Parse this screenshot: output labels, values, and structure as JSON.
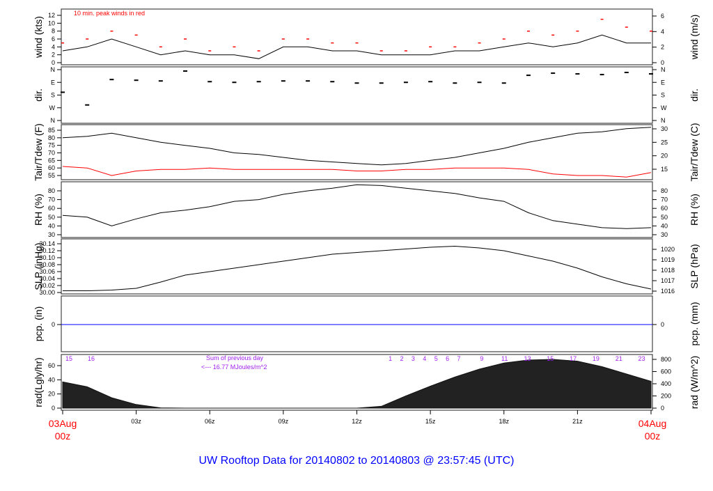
{
  "title": "UW Rooftop Data for 20140802  to  20140803 @ 23:57:45  (UTC)",
  "colors": {
    "line": "#000000",
    "peak": "#ff0000",
    "dewpoint": "#ff0000",
    "precip": "#0000ff",
    "annotation": "#a020f0",
    "date": "#ff0000",
    "title": "#0000ff"
  },
  "x_axis": {
    "start_label": [
      "03Aug",
      "00z"
    ],
    "end_label": [
      "04Aug",
      "00z"
    ],
    "ticks": [
      "03z",
      "06z",
      "09z",
      "12z",
      "15z",
      "18z",
      "21z"
    ]
  },
  "annotations": {
    "wind_note": "10 min. peak winds in red",
    "rad_sum_1": "Sum of previous day",
    "rad_sum_2": "<--- 16.77 MJoules/m^2",
    "rad_hour_labels_left": [
      "15",
      "16"
    ],
    "rad_hour_labels_right": [
      "1",
      "2",
      "3",
      "4",
      "5",
      "6",
      "7",
      "9",
      "11",
      "13",
      "15",
      "17",
      "19",
      "21",
      "23"
    ]
  },
  "chart_data": [
    {
      "type": "line",
      "ylabel": "wind (kts)",
      "ylabel_right": "wind (m/s)",
      "ylim": [
        0,
        13
      ],
      "yticks": [
        "0",
        "2",
        "4",
        "6",
        "8",
        "10",
        "12"
      ],
      "yticks_right": [
        "0",
        "2",
        "4",
        "6"
      ],
      "x_hours": [
        0,
        1,
        2,
        3,
        4,
        5,
        6,
        7,
        8,
        9,
        10,
        11,
        12,
        13,
        14,
        15,
        16,
        17,
        18,
        19,
        20,
        21,
        22,
        23,
        24
      ],
      "series": [
        {
          "values": [
            3,
            4,
            6,
            4,
            2,
            3,
            2,
            2,
            1,
            4,
            4,
            3,
            3,
            2,
            2,
            2,
            3,
            3,
            4,
            5,
            4,
            5,
            7,
            5,
            5
          ]
        },
        {
          "name": "10 min. peak winds",
          "values": [
            5,
            6,
            8,
            7,
            4,
            6,
            3,
            4,
            3,
            6,
            6,
            5,
            5,
            3,
            3,
            4,
            4,
            5,
            6,
            8,
            7,
            8,
            11,
            9,
            8
          ]
        }
      ]
    },
    {
      "type": "scatter",
      "ylabel": "dir.",
      "yticks": [
        "N",
        "W",
        "S",
        "E",
        "N"
      ],
      "ylim": [
        0,
        360
      ],
      "x_hours": [
        0,
        1,
        2,
        3,
        4,
        5,
        6,
        7,
        8,
        9,
        10,
        11,
        12,
        13,
        14,
        15,
        16,
        17,
        18,
        19,
        20,
        21,
        22,
        23,
        24
      ],
      "values": [
        200,
        110,
        290,
        285,
        280,
        350,
        275,
        270,
        275,
        280,
        280,
        275,
        265,
        265,
        270,
        275,
        265,
        270,
        265,
        320,
        335,
        330,
        325,
        340,
        330
      ]
    },
    {
      "type": "line",
      "ylabel": "Tair/Tdew (F)",
      "ylabel_right": "Tair/Tdew (C)",
      "ylim": [
        52,
        88
      ],
      "yticks": [
        "55",
        "60",
        "65",
        "70",
        "75",
        "80",
        "85"
      ],
      "yticks_right": [
        "15",
        "20",
        "25",
        "30"
      ],
      "x_hours": [
        0,
        1,
        2,
        3,
        4,
        5,
        6,
        7,
        8,
        9,
        10,
        11,
        12,
        13,
        14,
        15,
        16,
        17,
        18,
        19,
        20,
        21,
        22,
        23,
        24
      ],
      "series": [
        {
          "name": "Tair",
          "values": [
            80,
            81,
            83,
            80,
            77,
            75,
            73,
            70,
            69,
            67,
            65,
            64,
            63,
            62,
            63,
            65,
            67,
            70,
            73,
            77,
            80,
            83,
            84,
            86,
            87
          ]
        },
        {
          "name": "Tdew",
          "values": [
            61,
            60,
            55,
            58,
            59,
            59,
            60,
            59,
            59,
            59,
            59,
            59,
            58,
            58,
            59,
            59,
            60,
            60,
            60,
            59,
            56,
            55,
            55,
            54,
            57
          ]
        }
      ]
    },
    {
      "type": "line",
      "ylabel": "RH (%)",
      "ylabel_right": "RH (%)",
      "ylim": [
        30,
        87
      ],
      "yticks": [
        "30",
        "40",
        "50",
        "60",
        "70",
        "80"
      ],
      "x_hours": [
        0,
        1,
        2,
        3,
        4,
        5,
        6,
        7,
        8,
        9,
        10,
        11,
        12,
        13,
        14,
        15,
        16,
        17,
        18,
        19,
        20,
        21,
        22,
        23,
        24
      ],
      "values": [
        52,
        50,
        40,
        48,
        55,
        58,
        62,
        68,
        70,
        76,
        80,
        83,
        87,
        86,
        83,
        80,
        77,
        72,
        68,
        55,
        46,
        42,
        38,
        37,
        38
      ]
    },
    {
      "type": "line",
      "ylabel": "SLP (inHg)",
      "ylabel_right": "SLP (hPa)",
      "ylim": [
        30.0,
        30.14
      ],
      "yticks": [
        "30.00",
        "30.02",
        "30.04",
        "30.06",
        "30.08",
        "30.10",
        "30.12",
        "30.14"
      ],
      "yticks_right": [
        "1016",
        "1017",
        "1018",
        "1019",
        "1020"
      ],
      "x_hours": [
        0,
        1,
        2,
        3,
        4,
        5,
        6,
        7,
        8,
        9,
        10,
        11,
        12,
        13,
        14,
        15,
        16,
        17,
        18,
        19,
        20,
        21,
        22,
        23,
        24
      ],
      "values": [
        30.005,
        30.005,
        30.007,
        30.012,
        30.03,
        30.05,
        30.06,
        30.07,
        30.08,
        30.09,
        30.1,
        30.11,
        30.115,
        30.12,
        30.125,
        30.13,
        30.133,
        30.128,
        30.12,
        30.105,
        30.09,
        30.07,
        30.045,
        30.025,
        30.01
      ]
    },
    {
      "type": "line",
      "ylabel": "pcp. (in)",
      "ylabel_right": "pcp. (mm)",
      "yticks": [
        "0"
      ],
      "yticks_right": [
        "0"
      ],
      "x_hours": [
        0,
        24
      ],
      "values": [
        0,
        0
      ]
    },
    {
      "type": "area",
      "ylabel": "rad(Lgly/hr)",
      "ylabel_right": "rad (W/m^2)",
      "ylim": [
        0,
        820
      ],
      "yticks": [
        "0",
        "20",
        "40",
        "60"
      ],
      "yticks_right": [
        "0",
        "200",
        "400",
        "600",
        "800"
      ],
      "x_hours": [
        0,
        1,
        2,
        3,
        4,
        5,
        6,
        7,
        8,
        9,
        10,
        11,
        12,
        13,
        14,
        15,
        16,
        17,
        18,
        19,
        20,
        21,
        22,
        23,
        24
      ],
      "values": [
        430,
        350,
        170,
        60,
        5,
        0,
        0,
        0,
        0,
        0,
        0,
        0,
        0,
        30,
        200,
        360,
        510,
        640,
        740,
        790,
        800,
        770,
        680,
        560,
        440
      ]
    }
  ]
}
